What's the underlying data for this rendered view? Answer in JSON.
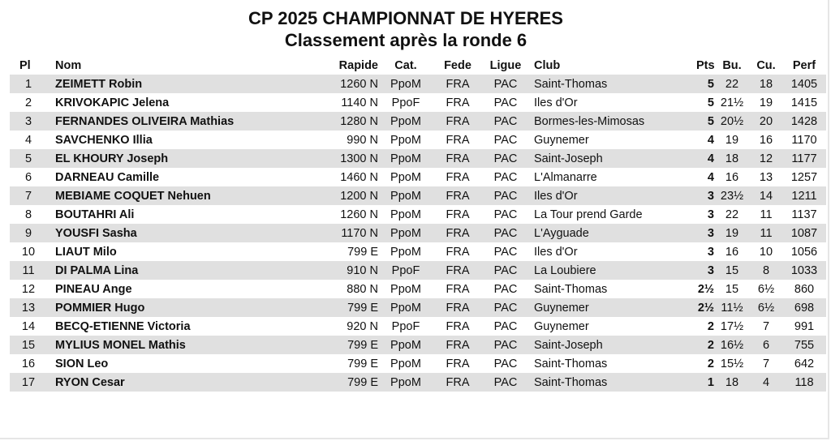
{
  "header": {
    "title": "CP 2025 CHAMPIONNAT DE HYERES",
    "subtitle": "Classement après la ronde 6"
  },
  "columns": {
    "pl": "Pl",
    "nom": "Nom",
    "rapide": "Rapide",
    "cat": "Cat.",
    "fede": "Fede",
    "ligue": "Ligue",
    "club": "Club",
    "pts": "Pts",
    "bu": "Bu.",
    "cu": "Cu.",
    "perf": "Perf"
  },
  "rows": [
    {
      "pl": "1",
      "nom": "ZEIMETT Robin",
      "rapide": "1260 N",
      "cat": "PpoM",
      "fede": "FRA",
      "ligue": "PAC",
      "club": "Saint-Thomas",
      "pts": "5",
      "bu": "22",
      "cu": "18",
      "perf": "1405"
    },
    {
      "pl": "2",
      "nom": "KRIVOKAPIC Jelena",
      "rapide": "1140 N",
      "cat": "PpoF",
      "fede": "FRA",
      "ligue": "PAC",
      "club": "Iles d'Or",
      "pts": "5",
      "bu": "21½",
      "cu": "19",
      "perf": "1415"
    },
    {
      "pl": "3",
      "nom": "FERNANDES OLIVEIRA Mathias",
      "rapide": "1280 N",
      "cat": "PpoM",
      "fede": "FRA",
      "ligue": "PAC",
      "club": "Bormes-les-Mimosas",
      "pts": "5",
      "bu": "20½",
      "cu": "20",
      "perf": "1428"
    },
    {
      "pl": "4",
      "nom": "SAVCHENKO Illia",
      "rapide": "990 N",
      "cat": "PpoM",
      "fede": "FRA",
      "ligue": "PAC",
      "club": "Guynemer",
      "pts": "4",
      "bu": "19",
      "cu": "16",
      "perf": "1170"
    },
    {
      "pl": "5",
      "nom": "EL KHOURY Joseph",
      "rapide": "1300 N",
      "cat": "PpoM",
      "fede": "FRA",
      "ligue": "PAC",
      "club": "Saint-Joseph",
      "pts": "4",
      "bu": "18",
      "cu": "12",
      "perf": "1177"
    },
    {
      "pl": "6",
      "nom": "DARNEAU Camille",
      "rapide": "1460 N",
      "cat": "PpoM",
      "fede": "FRA",
      "ligue": "PAC",
      "club": "L'Almanarre",
      "pts": "4",
      "bu": "16",
      "cu": "13",
      "perf": "1257"
    },
    {
      "pl": "7",
      "nom": "MEBIAME COQUET Nehuen",
      "rapide": "1200 N",
      "cat": "PpoM",
      "fede": "FRA",
      "ligue": "PAC",
      "club": "Iles d'Or",
      "pts": "3",
      "bu": "23½",
      "cu": "14",
      "perf": "1211"
    },
    {
      "pl": "8",
      "nom": "BOUTAHRI Ali",
      "rapide": "1260 N",
      "cat": "PpoM",
      "fede": "FRA",
      "ligue": "PAC",
      "club": "La Tour prend Garde",
      "pts": "3",
      "bu": "22",
      "cu": "11",
      "perf": "1137"
    },
    {
      "pl": "9",
      "nom": "YOUSFI Sasha",
      "rapide": "1170 N",
      "cat": "PpoM",
      "fede": "FRA",
      "ligue": "PAC",
      "club": "L'Ayguade",
      "pts": "3",
      "bu": "19",
      "cu": "11",
      "perf": "1087"
    },
    {
      "pl": "10",
      "nom": "LIAUT Milo",
      "rapide": "799 E",
      "cat": "PpoM",
      "fede": "FRA",
      "ligue": "PAC",
      "club": "Iles d'Or",
      "pts": "3",
      "bu": "16",
      "cu": "10",
      "perf": "1056"
    },
    {
      "pl": "11",
      "nom": "DI PALMA Lina",
      "rapide": "910 N",
      "cat": "PpoF",
      "fede": "FRA",
      "ligue": "PAC",
      "club": "La Loubiere",
      "pts": "3",
      "bu": "15",
      "cu": "8",
      "perf": "1033"
    },
    {
      "pl": "12",
      "nom": "PINEAU Ange",
      "rapide": "880 N",
      "cat": "PpoM",
      "fede": "FRA",
      "ligue": "PAC",
      "club": "Saint-Thomas",
      "pts": "2½",
      "bu": "15",
      "cu": "6½",
      "perf": "860"
    },
    {
      "pl": "13",
      "nom": "POMMIER Hugo",
      "rapide": "799 E",
      "cat": "PpoM",
      "fede": "FRA",
      "ligue": "PAC",
      "club": "Guynemer",
      "pts": "2½",
      "bu": "11½",
      "cu": "6½",
      "perf": "698"
    },
    {
      "pl": "14",
      "nom": "BECQ-ETIENNE Victoria",
      "rapide": "920 N",
      "cat": "PpoF",
      "fede": "FRA",
      "ligue": "PAC",
      "club": "Guynemer",
      "pts": "2",
      "bu": "17½",
      "cu": "7",
      "perf": "991"
    },
    {
      "pl": "15",
      "nom": "MYLIUS MONEL Mathis",
      "rapide": "799 E",
      "cat": "PpoM",
      "fede": "FRA",
      "ligue": "PAC",
      "club": "Saint-Joseph",
      "pts": "2",
      "bu": "16½",
      "cu": "6",
      "perf": "755"
    },
    {
      "pl": "16",
      "nom": "SION Leo",
      "rapide": "799 E",
      "cat": "PpoM",
      "fede": "FRA",
      "ligue": "PAC",
      "club": "Saint-Thomas",
      "pts": "2",
      "bu": "15½",
      "cu": "7",
      "perf": "642"
    },
    {
      "pl": "17",
      "nom": "RYON Cesar",
      "rapide": "799 E",
      "cat": "PpoM",
      "fede": "FRA",
      "ligue": "PAC",
      "club": "Saint-Thomas",
      "pts": "1",
      "bu": "18",
      "cu": "4",
      "perf": "118"
    }
  ],
  "colors": {
    "row_stripe": "#e0e0e0",
    "text": "#111111"
  }
}
